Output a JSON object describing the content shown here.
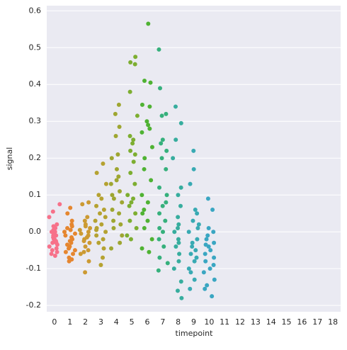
{
  "chart_data": {
    "type": "strip",
    "xlabel": "timepoint",
    "ylabel": "signal",
    "categories": [
      "0",
      "1",
      "2",
      "3",
      "4",
      "5",
      "6",
      "7",
      "8",
      "9",
      "10",
      "11",
      "12",
      "13",
      "14",
      "15",
      "16",
      "17",
      "18"
    ],
    "colors": [
      "#f77189",
      "#e5862f",
      "#cc9a32",
      "#b5a231",
      "#9ea631",
      "#7dae31",
      "#4fb233",
      "#36b07c",
      "#37ad9e",
      "#38aab3",
      "#3aa6c2"
    ],
    "values": [
      [
        0.075,
        0.055,
        0.04,
        0.02,
        0.015,
        0.01,
        0.005,
        0,
        -0.005,
        -0.01,
        -0.015,
        -0.02,
        -0.025,
        -0.03,
        -0.035,
        -0.04,
        -0.045,
        -0.05,
        -0.055,
        -0.06,
        -0.065,
        -0.01,
        -0.02,
        -0.03,
        0.0
      ],
      [
        0.065,
        0.05,
        0.03,
        0.02,
        0.01,
        0.005,
        0,
        -0.005,
        -0.01,
        -0.02,
        -0.025,
        -0.03,
        -0.035,
        -0.04,
        -0.05,
        -0.055,
        -0.06,
        -0.07,
        -0.075,
        -0.08,
        -0.015,
        -0.045,
        0.015
      ],
      [
        0.08,
        0.075,
        0.04,
        0.03,
        0.02,
        0.01,
        0.005,
        0,
        -0.005,
        -0.01,
        -0.02,
        -0.03,
        -0.04,
        -0.05,
        -0.055,
        -0.06,
        -0.08,
        -0.11,
        -0.015,
        -0.025,
        0.015
      ],
      [
        0.185,
        0.16,
        0.13,
        0.1,
        0.09,
        0.07,
        0.05,
        0.04,
        0.03,
        0.02,
        0.01,
        0,
        -0.01,
        -0.02,
        -0.03,
        -0.045,
        -0.07,
        -0.09,
        0.06,
        0.005
      ],
      [
        0.345,
        0.32,
        0.285,
        0.26,
        0.21,
        0.2,
        0.17,
        0.15,
        0.13,
        0.11,
        0.1,
        0.08,
        0.06,
        0.05,
        0.03,
        0.02,
        0.01,
        -0.01,
        -0.03,
        -0.045,
        0.14,
        0.09
      ],
      [
        0.475,
        0.46,
        0.455,
        0.38,
        0.315,
        0.26,
        0.25,
        0.22,
        0.21,
        0.19,
        0.16,
        0.13,
        0.1,
        0.09,
        0.07,
        0.05,
        0.03,
        0.01,
        -0.01,
        -0.02,
        0.24,
        0.08
      ],
      [
        0.565,
        0.41,
        0.405,
        0.345,
        0.34,
        0.3,
        0.29,
        0.27,
        0.23,
        0.2,
        0.17,
        0.14,
        0.1,
        0.08,
        0.05,
        0.03,
        0.01,
        -0.02,
        -0.045,
        -0.055,
        0.28,
        0.06
      ],
      [
        0.495,
        0.39,
        0.32,
        0.315,
        0.25,
        0.24,
        0.22,
        0.2,
        0.17,
        0.12,
        0.1,
        0.07,
        0.05,
        0.03,
        0.01,
        0,
        -0.02,
        -0.04,
        -0.07,
        -0.085,
        -0.105,
        0.08
      ],
      [
        0.34,
        0.295,
        0.25,
        0.2,
        0.12,
        0.1,
        0.07,
        0.04,
        0.02,
        0,
        -0.02,
        -0.04,
        -0.06,
        -0.08,
        -0.1,
        -0.135,
        -0.16,
        -0.18,
        0.01,
        -0.03
      ],
      [
        0.22,
        0.17,
        0.13,
        0.06,
        0.05,
        0.03,
        0.01,
        0,
        -0.02,
        -0.03,
        -0.05,
        -0.06,
        -0.08,
        -0.1,
        -0.11,
        -0.13,
        -0.155,
        0.02,
        -0.04,
        -0.07
      ],
      [
        0.09,
        0.06,
        0.01,
        0,
        -0.01,
        -0.02,
        -0.03,
        -0.04,
        -0.05,
        -0.06,
        -0.07,
        -0.08,
        -0.09,
        -0.11,
        -0.13,
        -0.145,
        -0.155,
        -0.175,
        -0.035,
        -0.1
      ],
      [],
      [],
      [],
      [],
      [],
      [],
      [],
      []
    ],
    "xlim": [
      -0.5,
      18.5
    ],
    "ylim": [
      -0.217,
      0.614
    ],
    "yticks": [
      -0.2,
      -0.1,
      {
        "value": 0,
        "label": "0.0"
      },
      0.1,
      0.2,
      0.3,
      0.4,
      0.5,
      0.6
    ],
    "grid": true
  }
}
